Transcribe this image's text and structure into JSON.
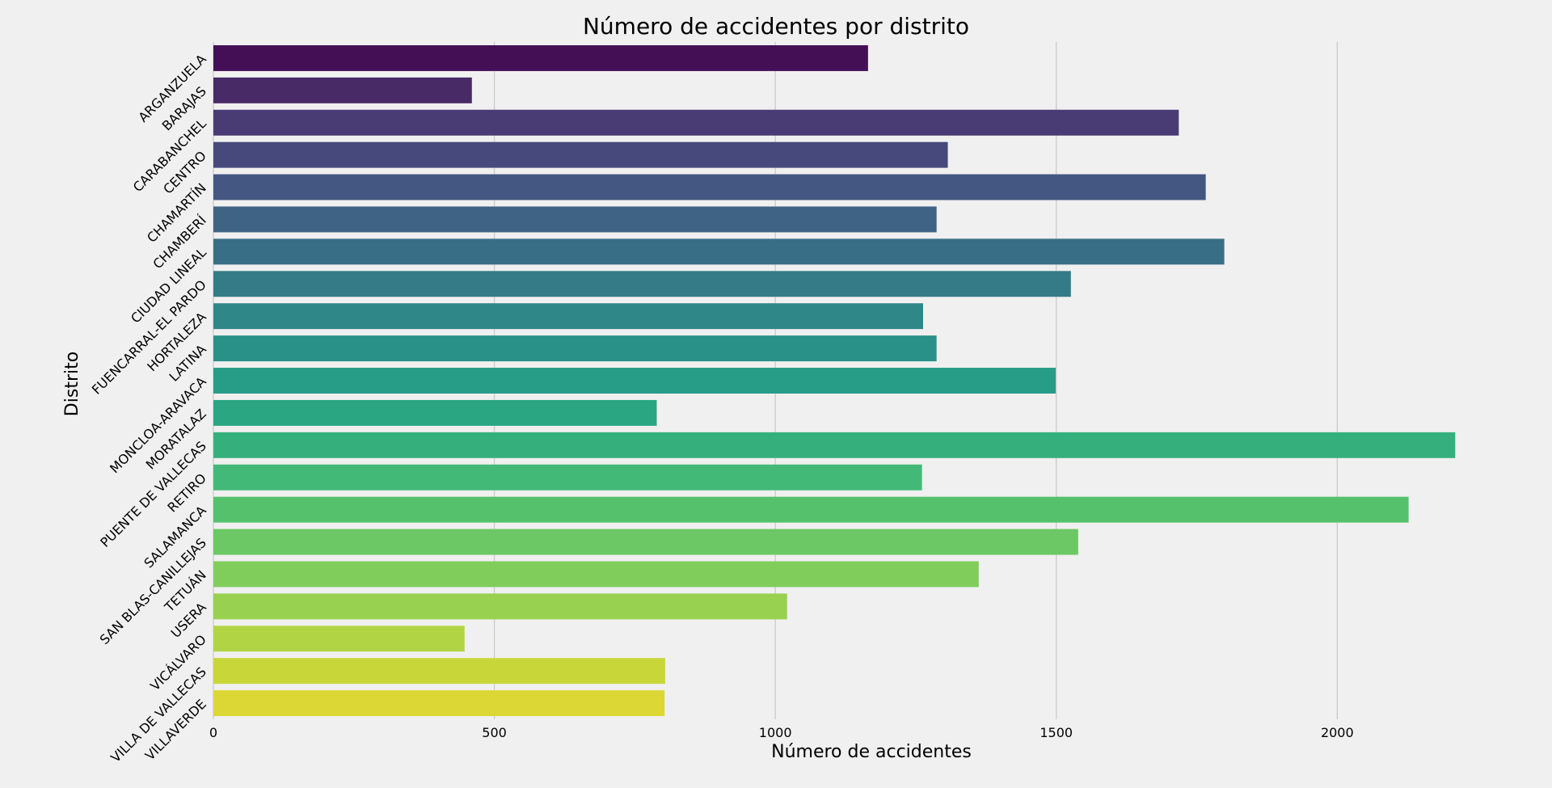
{
  "chart_data": {
    "type": "bar",
    "orientation": "horizontal",
    "title": "Número de accidentes por distrito",
    "xlabel": "Número de accidentes",
    "ylabel": "Distrito",
    "xlim": [
      0,
      2270
    ],
    "xticks": [
      0,
      500,
      1000,
      1500,
      2000
    ],
    "xtick_labels": [
      "0",
      "500",
      "1000",
      "1500",
      "2000"
    ],
    "grid": true,
    "categories": [
      "ARGANZUELA",
      "BARAJAS",
      "CARABANCHEL",
      "CENTRO",
      "CHAMARTÍN",
      "CHAMBERÍ",
      "CIUDAD LINEAL",
      "FUENCARRAL-EL PARDO",
      "HORTALEZA",
      "LATINA",
      "MONCLOA-ARAVACA",
      "MORATALAZ",
      "PUENTE DE VALLECAS",
      "RETIRO",
      "SALAMANCA",
      "SAN BLAS-CANILLEJAS",
      "TETUÁN",
      "USERA",
      "VICÁLVARO",
      "VILLA DE VALLECAS",
      "VILLAVERDE"
    ],
    "values": [
      1165,
      460,
      1718,
      1307,
      1766,
      1287,
      1799,
      1526,
      1263,
      1287,
      1499,
      789,
      2210,
      1261,
      2127,
      1539,
      1362,
      1021,
      447,
      804,
      803
    ],
    "colors": [
      "#440f55",
      "#482a66",
      "#493b74",
      "#47497c",
      "#435782",
      "#3e6384",
      "#386f86",
      "#347b87",
      "#2f8788",
      "#2a9188",
      "#279c86",
      "#2aa683",
      "#35b07c",
      "#43b977",
      "#55c16c",
      "#6bc864",
      "#80cd5c",
      "#98d14f",
      "#b1d444",
      "#c8d63a",
      "#dcd734"
    ]
  }
}
